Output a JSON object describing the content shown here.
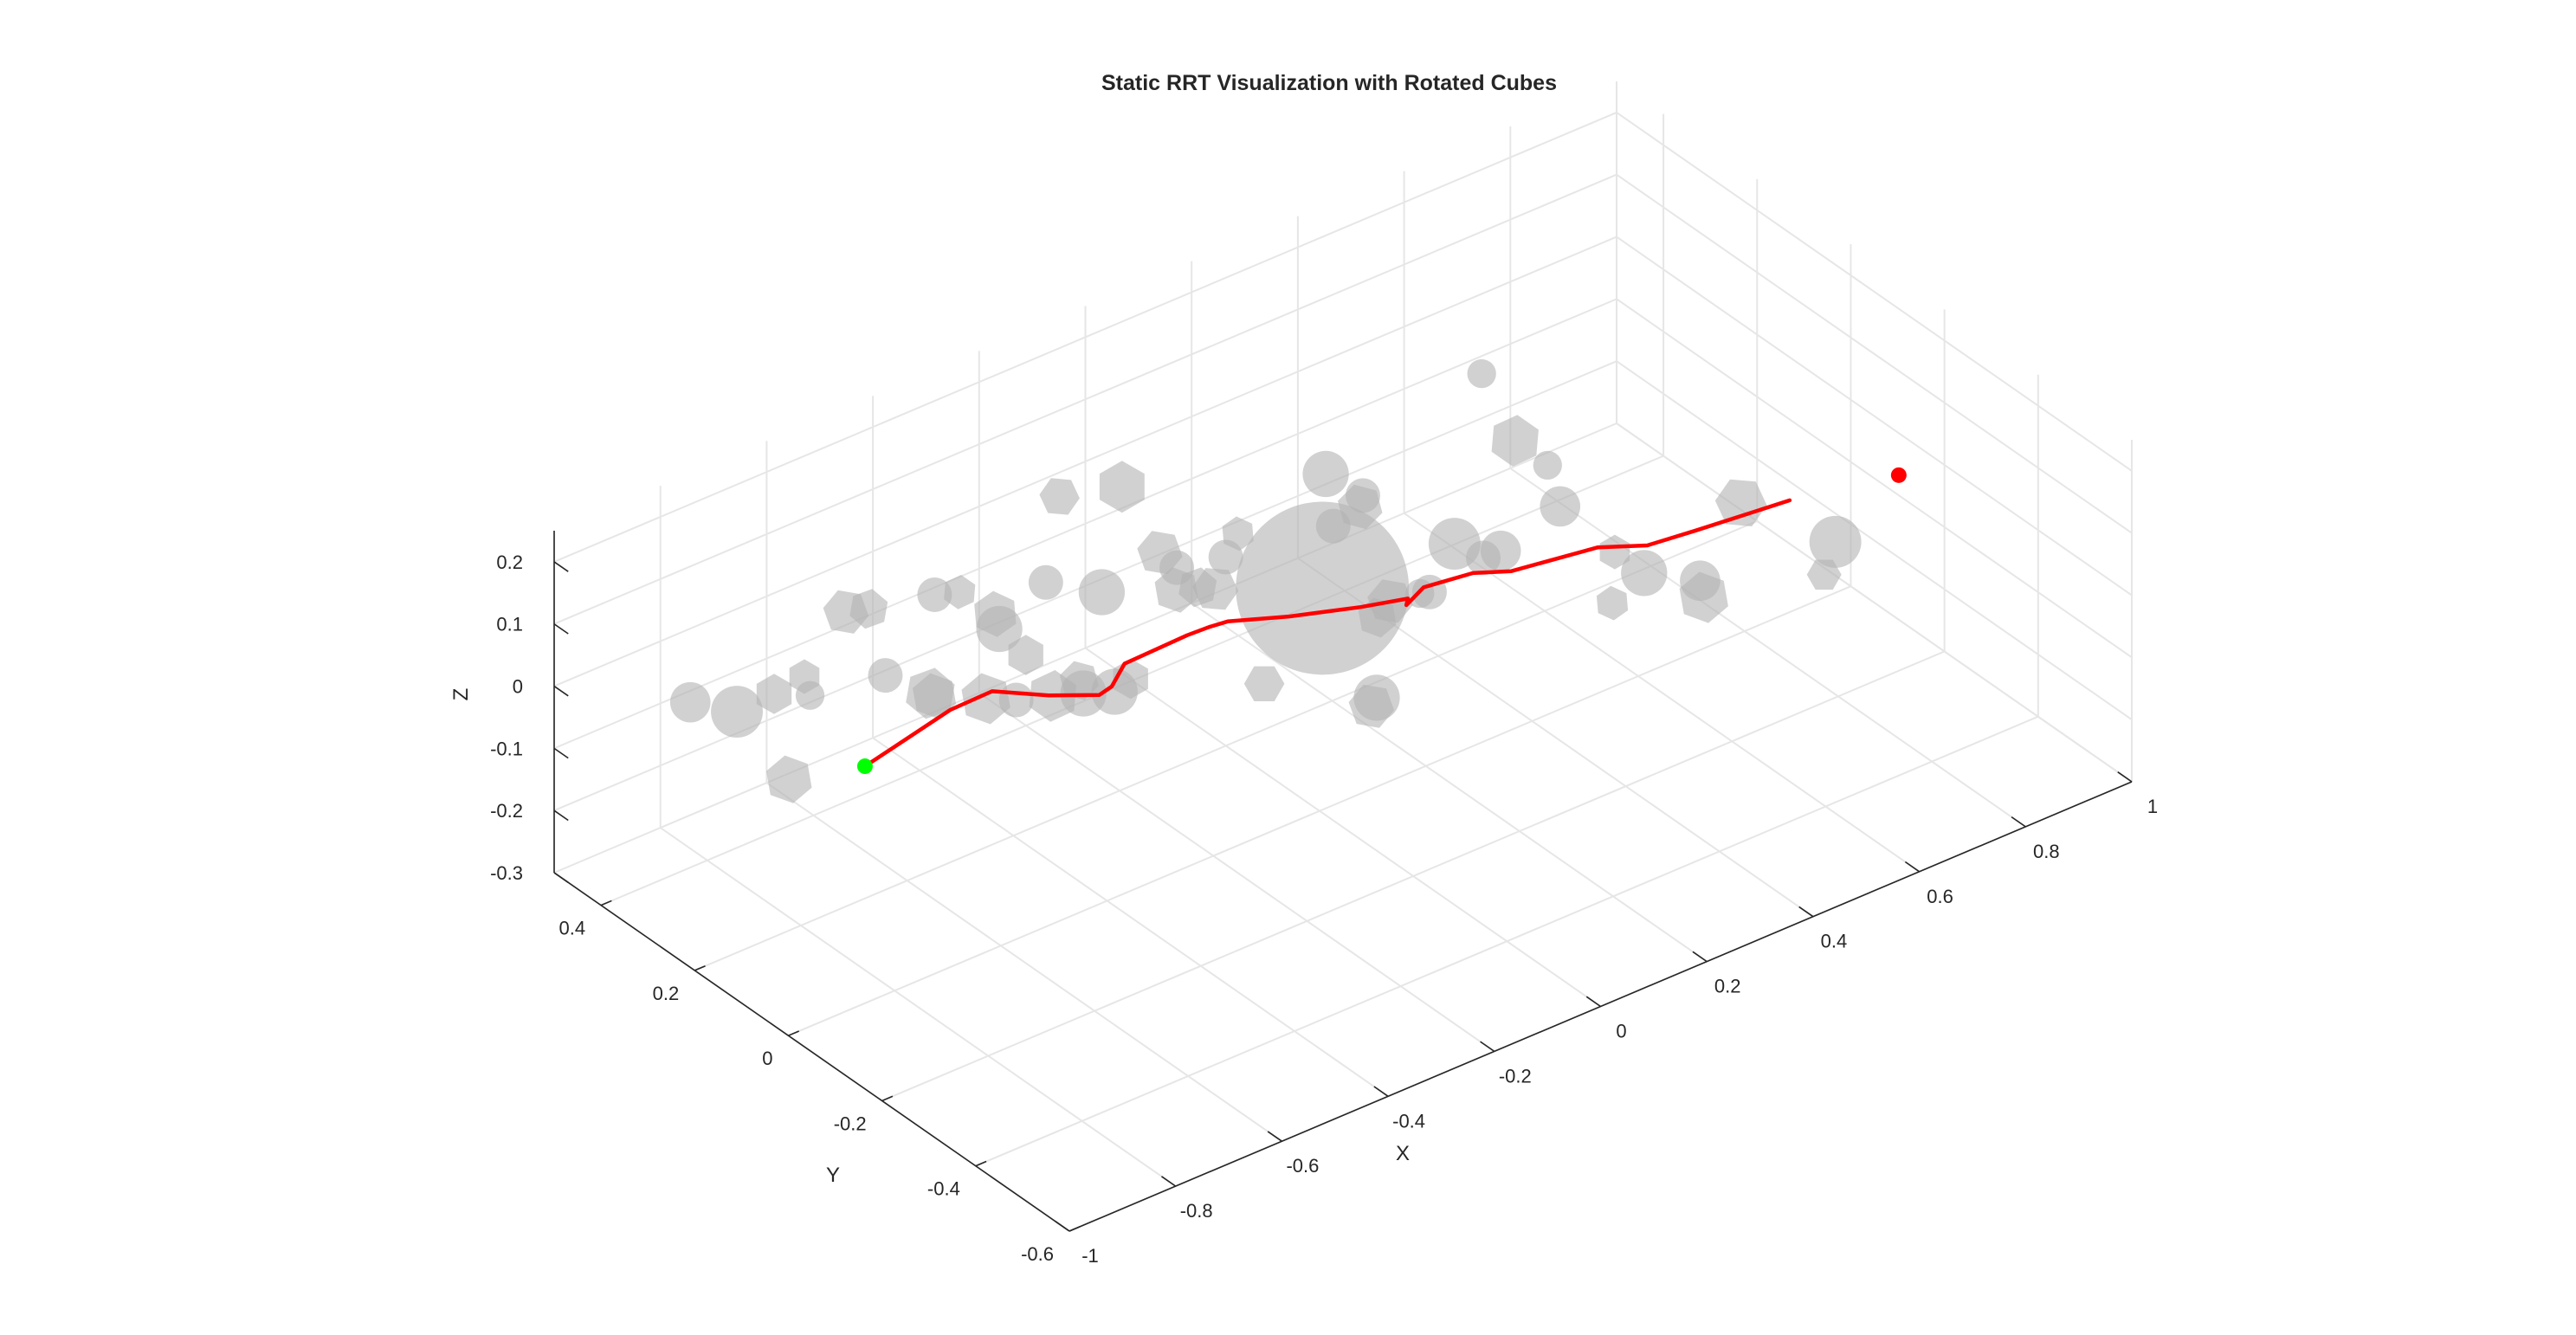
{
  "chart_data": {
    "type": "scatter3d",
    "title": "Static RRT Visualization with Rotated Cubes",
    "xlabel": "X",
    "ylabel": "Y",
    "zlabel": "Z",
    "xlim": [
      -1,
      1
    ],
    "ylim": [
      -0.6,
      0.5
    ],
    "zlim": [
      -0.3,
      0.25
    ],
    "xticks": [
      "-1",
      "-0.8",
      "-0.6",
      "-0.4",
      "-0.2",
      "0",
      "0.2",
      "0.4",
      "0.6",
      "0.8",
      "1"
    ],
    "yticks": [
      "-0.6",
      "-0.4",
      "-0.2",
      "0",
      "0.2",
      "0.4"
    ],
    "zticks": [
      "-0.3",
      "-0.2",
      "-0.1",
      "0",
      "0.1",
      "0.2"
    ],
    "grid": true,
    "colors": {
      "path": "#ff0000",
      "start": "#00ff00",
      "goal": "#ff0000",
      "obstacle": "#b3b3b3"
    },
    "start": {
      "x": -0.75,
      "y": 0.12,
      "z": -0.02
    },
    "goal": {
      "x": 0.72,
      "y": -0.42,
      "z": 0.2
    },
    "path": [
      {
        "x": -0.75,
        "y": 0.12,
        "z": -0.02
      },
      {
        "x": -0.7,
        "y": 0.12,
        "z": -0.01
      },
      {
        "x": -0.66,
        "y": 0.04,
        "z": 0.08
      },
      {
        "x": -0.59,
        "y": 0.03,
        "z": 0.09
      },
      {
        "x": -0.51,
        "y": 0.0,
        "z": 0.07
      },
      {
        "x": -0.45,
        "y": -0.04,
        "z": 0.07
      },
      {
        "x": -0.4,
        "y": -0.01,
        "z": 0.05
      },
      {
        "x": -0.42,
        "y": -0.06,
        "z": 0.12
      },
      {
        "x": -0.32,
        "y": -0.08,
        "z": 0.14
      },
      {
        "x": -0.27,
        "y": -0.07,
        "z": 0.13
      },
      {
        "x": -0.27,
        "y": -0.11,
        "z": 0.16
      },
      {
        "x": -0.19,
        "y": -0.15,
        "z": 0.16
      },
      {
        "x": -0.09,
        "y": -0.19,
        "z": 0.16
      },
      {
        "x": -0.01,
        "y": -0.2,
        "z": 0.15
      },
      {
        "x": 0.04,
        "y": -0.14,
        "z": 0.09
      },
      {
        "x": 0.09,
        "y": -0.12,
        "z": 0.09
      },
      {
        "x": 0.13,
        "y": -0.18,
        "z": 0.13
      },
      {
        "x": 0.22,
        "y": -0.16,
        "z": 0.09
      },
      {
        "x": 0.33,
        "y": -0.22,
        "z": 0.12
      },
      {
        "x": 0.37,
        "y": -0.28,
        "z": 0.14
      },
      {
        "x": 0.4,
        "y": -0.35,
        "z": 0.19
      },
      {
        "x": 0.55,
        "y": -0.38,
        "z": 0.2
      }
    ],
    "obstacles": [
      {
        "shape": "sphere",
        "x": -0.03,
        "y": -0.04,
        "z": 0.09,
        "r": 0.15
      },
      {
        "shape": "sphere",
        "x": -0.92,
        "y": 0.3,
        "z": 0.05,
        "r": 0.035
      },
      {
        "shape": "sphere",
        "x": -0.85,
        "y": 0.28,
        "z": 0.02,
        "r": 0.045
      },
      {
        "shape": "cube",
        "x": -0.84,
        "y": 0.18,
        "z": -0.04,
        "r": 0.042,
        "rot": 20
      },
      {
        "shape": "cube",
        "x": -0.66,
        "y": 0.02,
        "z": 0.28,
        "r": 0.03,
        "rot": 35
      },
      {
        "shape": "cube",
        "x": -0.68,
        "y": 0.24,
        "z": 0.14,
        "r": 0.04,
        "rot": 10
      },
      {
        "shape": "cube",
        "x": -0.69,
        "y": 0.18,
        "z": 0.18,
        "r": 0.035,
        "rot": 40
      },
      {
        "shape": "sphere",
        "x": -0.61,
        "y": 0.13,
        "z": 0.2,
        "r": 0.03
      },
      {
        "shape": "sphere",
        "x": -0.55,
        "y": 0.06,
        "z": 0.16,
        "r": 0.04
      },
      {
        "shape": "cube",
        "x": -0.54,
        "y": 0.08,
        "z": 0.17,
        "r": 0.04,
        "rot": 25
      },
      {
        "shape": "sphere",
        "x": -0.48,
        "y": 0.04,
        "z": 0.22,
        "r": 0.03
      },
      {
        "shape": "sphere",
        "x": -0.41,
        "y": 0.0,
        "z": 0.2,
        "r": 0.04
      },
      {
        "shape": "cube",
        "x": -0.47,
        "y": -0.02,
        "z": 0.09,
        "r": 0.035,
        "rot": 15
      },
      {
        "shape": "cube",
        "x": -0.5,
        "y": 0.06,
        "z": 0.1,
        "r": 0.035,
        "rot": 30
      },
      {
        "shape": "cube",
        "x": -0.56,
        "y": -0.08,
        "z": 0.45,
        "r": 0.035,
        "rot": 5
      },
      {
        "shape": "cube",
        "x": -0.46,
        "y": -0.1,
        "z": 0.44,
        "r": 0.045,
        "rot": 30
      },
      {
        "shape": "cube",
        "x": -0.38,
        "y": -0.09,
        "z": 0.3,
        "r": 0.04,
        "rot": 10
      },
      {
        "shape": "cube",
        "x": -0.34,
        "y": -0.08,
        "z": 0.22,
        "r": 0.04,
        "rot": 20
      },
      {
        "shape": "cube",
        "x": -0.3,
        "y": -0.08,
        "z": 0.21,
        "r": 0.035,
        "rot": 40
      },
      {
        "shape": "sphere",
        "x": -0.3,
        "y": -0.14,
        "z": 0.29,
        "r": 0.03
      },
      {
        "shape": "cube",
        "x": -0.33,
        "y": -0.2,
        "z": 0.37,
        "r": 0.03,
        "rot": 25
      },
      {
        "shape": "sphere",
        "x": -0.2,
        "y": -0.24,
        "z": 0.44,
        "r": 0.04
      },
      {
        "shape": "sphere",
        "x": -0.13,
        "y": -0.24,
        "z": 0.38,
        "r": 0.03
      },
      {
        "shape": "cube",
        "x": -0.1,
        "y": -0.2,
        "z": 0.33,
        "r": 0.04,
        "rot": 15
      },
      {
        "shape": "sphere",
        "x": -0.26,
        "y": 0.01,
        "z": 0.18,
        "r": 0.03
      },
      {
        "shape": "cube",
        "x": -0.24,
        "y": -0.05,
        "z": 0.17,
        "r": 0.04,
        "rot": 5
      },
      {
        "shape": "sphere",
        "x": -0.08,
        "y": -0.12,
        "z": 0.25,
        "r": 0.03
      },
      {
        "shape": "sphere",
        "x": 0.12,
        "y": -0.21,
        "z": 0.47,
        "r": 0.025
      },
      {
        "shape": "cube",
        "x": 0.13,
        "y": -0.27,
        "z": 0.39,
        "r": 0.045,
        "rot": 35
      },
      {
        "shape": "sphere",
        "x": 0.2,
        "y": -0.26,
        "z": 0.32,
        "r": 0.025
      },
      {
        "shape": "sphere",
        "x": 0.2,
        "y": -0.16,
        "z": 0.13,
        "r": 0.035
      },
      {
        "shape": "sphere",
        "x": 0.25,
        "y": -0.23,
        "z": 0.22,
        "r": 0.035
      },
      {
        "shape": "cube",
        "x": 0.3,
        "y": -0.29,
        "z": 0.16,
        "r": 0.03,
        "rot": 30
      },
      {
        "shape": "sphere",
        "x": 0.32,
        "y": -0.33,
        "z": 0.14,
        "r": 0.04
      },
      {
        "shape": "sphere",
        "x": 0.11,
        "y": -0.11,
        "z": 0.07,
        "r": 0.03
      },
      {
        "shape": "sphere",
        "x": 0.22,
        "y": -0.1,
        "z": 0.08,
        "r": 0.03
      },
      {
        "shape": "sphere",
        "x": 0.21,
        "y": -0.05,
        "z": 0.08,
        "r": 0.045
      },
      {
        "shape": "cube",
        "x": 0.08,
        "y": -0.06,
        "z": 0.04,
        "r": 0.04,
        "rot": 10
      },
      {
        "shape": "cube",
        "x": 0.1,
        "y": -0.01,
        "z": -0.02,
        "r": 0.035,
        "rot": 20
      },
      {
        "shape": "sphere",
        "x": 0.18,
        "y": -0.01,
        "z": -0.01,
        "r": 0.025
      },
      {
        "shape": "cube",
        "x": 0.41,
        "y": -0.16,
        "z": -0.03,
        "r": 0.03,
        "rot": 25
      },
      {
        "shape": "sphere",
        "x": 0.54,
        "y": -0.2,
        "z": -0.02,
        "r": 0.035
      },
      {
        "shape": "cube",
        "x": 0.52,
        "y": -0.31,
        "z": 0.17,
        "r": 0.045,
        "rot": 5
      },
      {
        "shape": "sphere",
        "x": 0.68,
        "y": -0.33,
        "z": 0.06,
        "r": 0.045
      },
      {
        "shape": "cube",
        "x": 0.6,
        "y": -0.14,
        "z": -0.1,
        "r": 0.045,
        "rot": 20
      },
      {
        "shape": "cube",
        "x": 0.8,
        "y": -0.17,
        "z": -0.12,
        "r": 0.03,
        "rot": 0
      },
      {
        "shape": "cube",
        "x": -0.67,
        "y": 0.34,
        "z": -0.02,
        "r": 0.03,
        "rot": 30
      },
      {
        "shape": "cube",
        "x": -0.54,
        "y": 0.21,
        "z": -0.03,
        "r": 0.04,
        "rot": 20
      },
      {
        "shape": "cube",
        "x": -0.53,
        "y": 0.23,
        "z": -0.04,
        "r": 0.045,
        "rot": 40
      },
      {
        "shape": "sphere",
        "x": -0.43,
        "y": 0.16,
        "z": -0.05,
        "r": 0.03
      },
      {
        "shape": "cube",
        "x": -0.37,
        "y": 0.15,
        "z": -0.06,
        "r": 0.045,
        "rot": 35
      },
      {
        "shape": "sphere",
        "x": -0.33,
        "y": 0.13,
        "z": -0.06,
        "r": 0.04
      },
      {
        "shape": "sphere",
        "x": -0.28,
        "y": 0.12,
        "z": -0.07,
        "r": 0.04
      },
      {
        "shape": "cube",
        "x": -0.25,
        "y": 0.12,
        "z": -0.06,
        "r": 0.035,
        "rot": 30
      },
      {
        "shape": "cube",
        "x": -0.06,
        "y": 0.05,
        "z": -0.1,
        "r": 0.035,
        "rot": 0
      },
      {
        "shape": "cube",
        "x": 0.08,
        "y": -0.02,
        "z": -0.15,
        "r": 0.04,
        "rot": 10
      },
      {
        "shape": "sphere",
        "x": 0.09,
        "y": -0.02,
        "z": -0.14,
        "r": 0.04
      },
      {
        "shape": "sphere",
        "x": -0.5,
        "y": 0.36,
        "z": -0.09,
        "r": 0.03
      },
      {
        "shape": "cube",
        "x": -0.39,
        "y": 0.27,
        "z": -0.12,
        "r": 0.045,
        "rot": 20
      },
      {
        "shape": "cube",
        "x": -0.63,
        "y": 0.45,
        "z": -0.12,
        "r": 0.035,
        "rot": 30
      },
      {
        "shape": "sphere",
        "x": -0.58,
        "y": 0.43,
        "z": -0.13,
        "r": 0.025
      }
    ]
  }
}
